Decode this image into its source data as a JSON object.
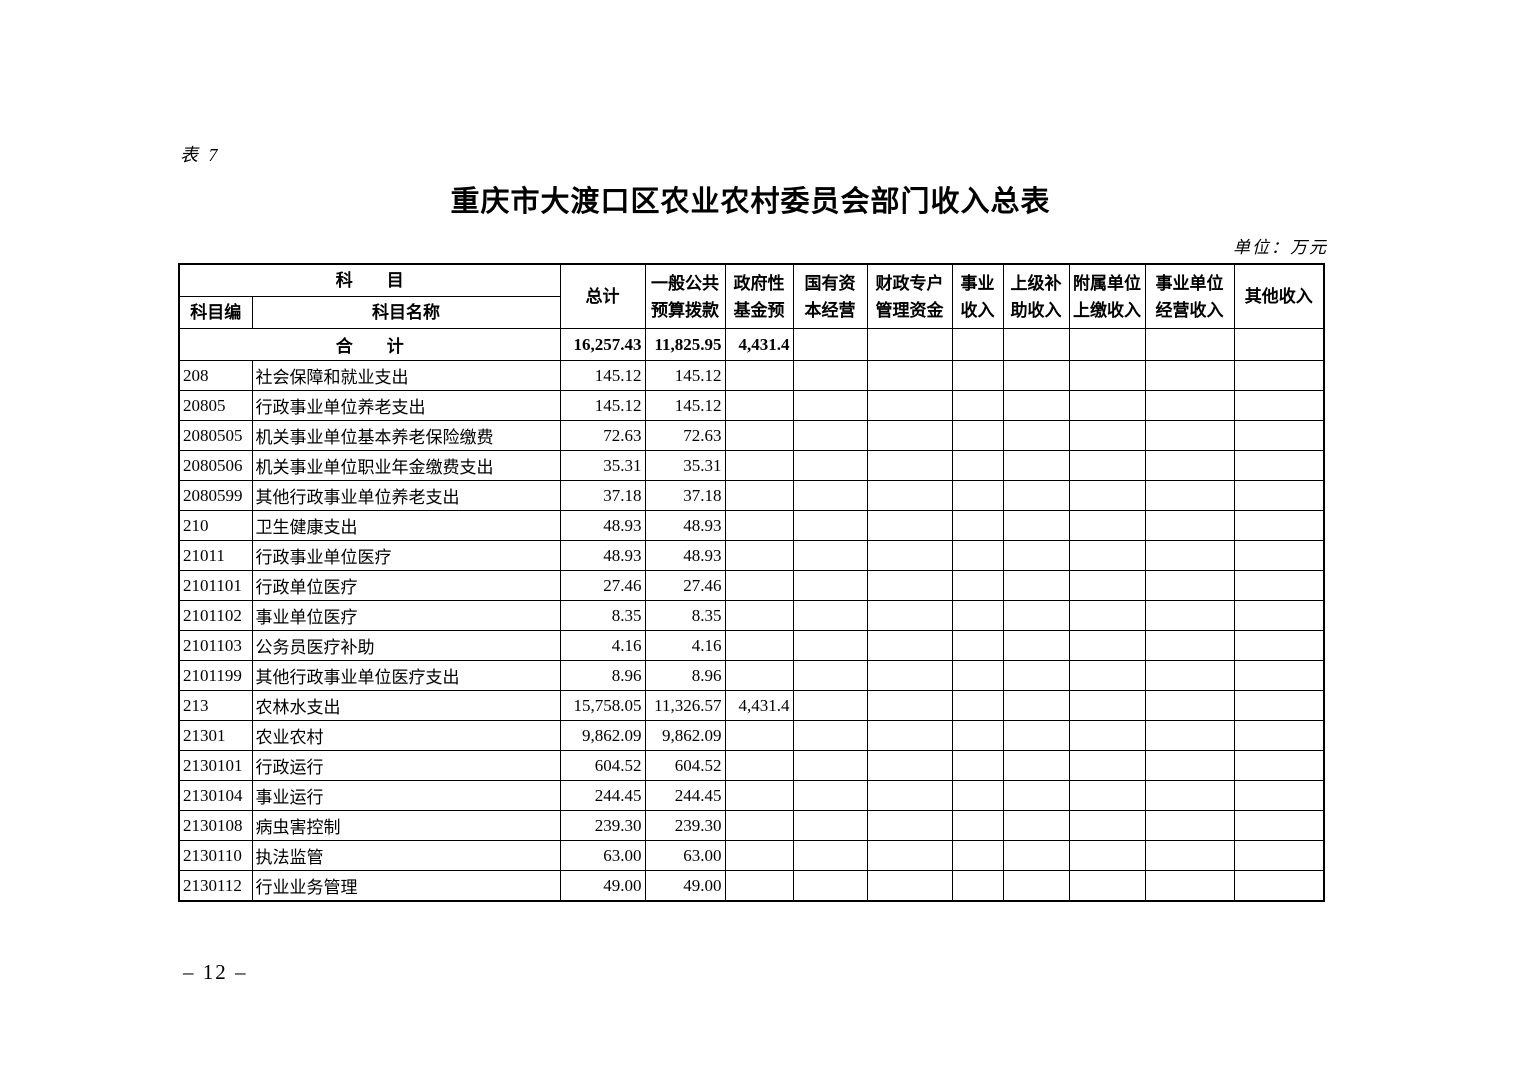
{
  "page": {
    "table_label": "表 7",
    "title": "重庆市大渡口区农业农村委员会部门收入总表",
    "unit_note": "单位：万元",
    "page_number": "– 12 –"
  },
  "table": {
    "header": {
      "subject_group": "科　　目",
      "code_col": "科目编",
      "name_col": "科目名称",
      "columns": [
        "总计",
        "一般公共\n预算拨款",
        "政府性\n基金预",
        "国有资\n本经营",
        "财政专户\n管理资金",
        "事业\n收入",
        "上级补\n助收入",
        "附属单位\n上缴收入",
        "事业单位\n经营收入",
        "其他收入"
      ]
    },
    "total_row": {
      "label": "合　　计",
      "values": [
        "16,257.43",
        "11,825.95",
        "4,431.4",
        "",
        "",
        "",
        "",
        "",
        "",
        ""
      ]
    },
    "rows": [
      {
        "code": "208",
        "code_indent": 0,
        "name": "社会保障和就业支出",
        "name_indent": 0,
        "values": [
          "145.12",
          "145.12",
          "",
          "",
          "",
          "",
          "",
          "",
          "",
          ""
        ]
      },
      {
        "code": "20805",
        "code_indent": 2,
        "name": "行政事业单位养老支出",
        "name_indent": 1,
        "values": [
          "145.12",
          "145.12",
          "",
          "",
          "",
          "",
          "",
          "",
          "",
          ""
        ]
      },
      {
        "code": "2080505",
        "code_indent": 0,
        "name": "机关事业单位基本养老保险缴费",
        "name_indent": 2,
        "values": [
          "72.63",
          "72.63",
          "",
          "",
          "",
          "",
          "",
          "",
          "",
          ""
        ]
      },
      {
        "code": "2080506",
        "code_indent": 0,
        "name": "机关事业单位职业年金缴费支出",
        "name_indent": 2,
        "values": [
          "35.31",
          "35.31",
          "",
          "",
          "",
          "",
          "",
          "",
          "",
          ""
        ]
      },
      {
        "code": "2080599",
        "code_indent": 0,
        "name": "其他行政事业单位养老支出",
        "name_indent": 2,
        "values": [
          "37.18",
          "37.18",
          "",
          "",
          "",
          "",
          "",
          "",
          "",
          ""
        ]
      },
      {
        "code": "210",
        "code_indent": 0,
        "name": "卫生健康支出",
        "name_indent": 0,
        "values": [
          "48.93",
          "48.93",
          "",
          "",
          "",
          "",
          "",
          "",
          "",
          ""
        ]
      },
      {
        "code": "21011",
        "code_indent": 0,
        "name": "行政事业单位医疗",
        "name_indent": 1,
        "values": [
          "48.93",
          "48.93",
          "",
          "",
          "",
          "",
          "",
          "",
          "",
          ""
        ]
      },
      {
        "code": "2101101",
        "code_indent": 1,
        "name": "行政单位医疗",
        "name_indent": 2,
        "values": [
          "27.46",
          "27.46",
          "",
          "",
          "",
          "",
          "",
          "",
          "",
          ""
        ]
      },
      {
        "code": "2101102",
        "code_indent": 1,
        "name": "事业单位医疗",
        "name_indent": 2,
        "values": [
          "8.35",
          "8.35",
          "",
          "",
          "",
          "",
          "",
          "",
          "",
          ""
        ]
      },
      {
        "code": "2101103",
        "code_indent": 1,
        "name": "公务员医疗补助",
        "name_indent": 2,
        "values": [
          "4.16",
          "4.16",
          "",
          "",
          "",
          "",
          "",
          "",
          "",
          ""
        ]
      },
      {
        "code": "2101199",
        "code_indent": 1,
        "name": "其他行政事业单位医疗支出",
        "name_indent": 2,
        "values": [
          "8.96",
          "8.96",
          "",
          "",
          "",
          "",
          "",
          "",
          "",
          ""
        ]
      },
      {
        "code": "213",
        "code_indent": 0,
        "name": "农林水支出",
        "name_indent": 0,
        "values": [
          "15,758.05",
          "11,326.57",
          "4,431.4",
          "",
          "",
          "",
          "",
          "",
          "",
          ""
        ]
      },
      {
        "code": "21301",
        "code_indent": 2,
        "name": "农业农村",
        "name_indent": 1,
        "values": [
          "9,862.09",
          "9,862.09",
          "",
          "",
          "",
          "",
          "",
          "",
          "",
          ""
        ]
      },
      {
        "code": "2130101",
        "code_indent": 0,
        "name": "行政运行",
        "name_indent": 2,
        "values": [
          "604.52",
          "604.52",
          "",
          "",
          "",
          "",
          "",
          "",
          "",
          ""
        ]
      },
      {
        "code": "2130104",
        "code_indent": 0,
        "name": "事业运行",
        "name_indent": 2,
        "values": [
          "244.45",
          "244.45",
          "",
          "",
          "",
          "",
          "",
          "",
          "",
          ""
        ]
      },
      {
        "code": "2130108",
        "code_indent": 0,
        "name": "病虫害控制",
        "name_indent": 2,
        "values": [
          "239.30",
          "239.30",
          "",
          "",
          "",
          "",
          "",
          "",
          "",
          ""
        ]
      },
      {
        "code": "2130110",
        "code_indent": 0,
        "name": "执法监管",
        "name_indent": 2,
        "values": [
          "63.00",
          "63.00",
          "",
          "",
          "",
          "",
          "",
          "",
          "",
          ""
        ]
      },
      {
        "code": "2130112",
        "code_indent": 0,
        "name": "行业业务管理",
        "name_indent": 2,
        "values": [
          "49.00",
          "49.00",
          "",
          "",
          "",
          "",
          "",
          "",
          "",
          ""
        ]
      }
    ]
  }
}
